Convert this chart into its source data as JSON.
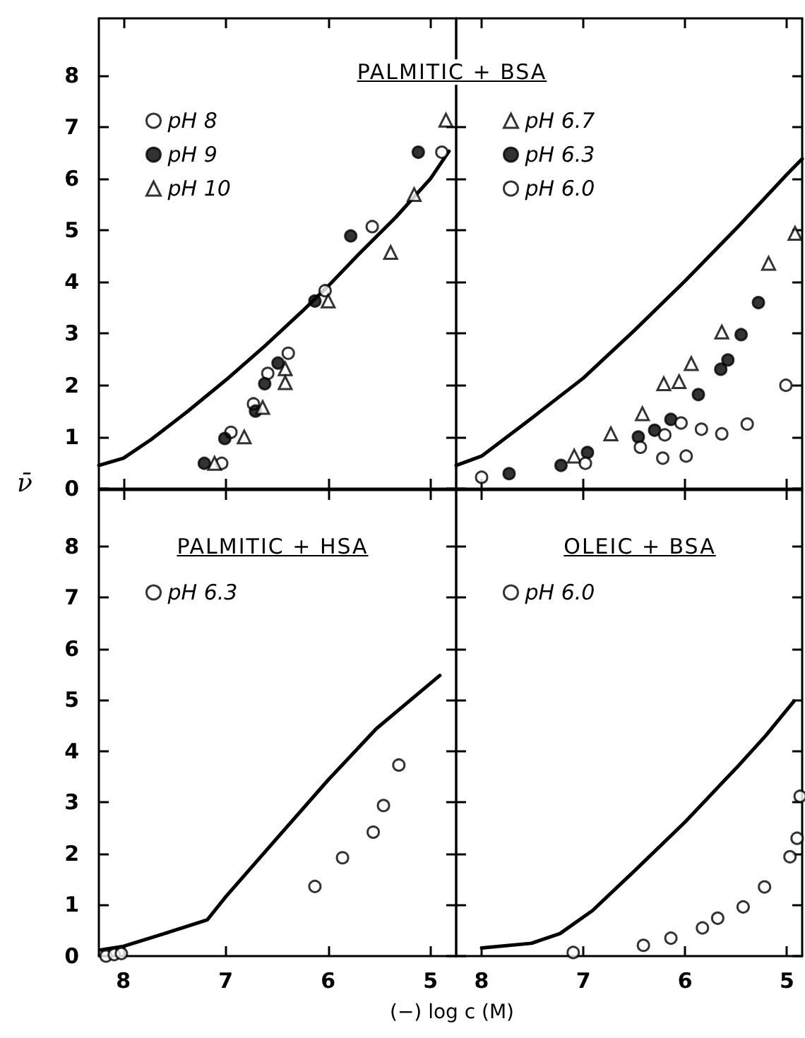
{
  "chart_data": [
    {
      "type": "scatter",
      "title": "PALMITIC + BSA",
      "ylabel": "ν̄",
      "xlim": [
        8.24,
        4.75
      ],
      "xticks": [
        8,
        7,
        6,
        5
      ],
      "ylim": [
        0,
        9.1
      ],
      "yticks": [
        0,
        1,
        2,
        3,
        4,
        5,
        6,
        7,
        8
      ],
      "tick_labels": "y",
      "legend": "top left",
      "series": [
        {
          "name": "pH 8",
          "color": "#ffffff",
          "marker": "circle",
          "x": [
            7.04,
            6.95,
            6.73,
            6.59,
            6.39,
            6.03,
            5.57,
            4.89
          ],
          "values": [
            0.49,
            1.09,
            1.64,
            2.23,
            2.62,
            3.83,
            5.07,
            6.51
          ]
        },
        {
          "name": "pH 9",
          "color": "#000000",
          "marker": "circle",
          "x": [
            7.21,
            7.01,
            6.71,
            6.62,
            6.49,
            6.13,
            5.78,
            5.12
          ],
          "values": [
            0.49,
            0.97,
            1.5,
            2.03,
            2.43,
            3.63,
            4.89,
            6.51
          ]
        },
        {
          "name": "pH 10",
          "color": "#ffffff",
          "marker": "triangle",
          "x": [
            7.11,
            6.82,
            6.64,
            6.42,
            6.42,
            6.0,
            5.39,
            5.16,
            4.85
          ],
          "values": [
            0.49,
            1.0,
            1.57,
            2.32,
            2.05,
            3.63,
            4.57,
            5.69,
            7.13
          ]
        },
        {
          "type": "line",
          "color": "#000000",
          "marker": "none",
          "x": [
            8.24,
            8.0,
            7.73,
            7.37,
            7.0,
            6.63,
            6.26,
            6.0,
            5.71,
            5.34,
            5.0,
            4.82
          ],
          "values": [
            0.45,
            0.59,
            0.95,
            1.5,
            2.1,
            2.74,
            3.42,
            3.92,
            4.52,
            5.25,
            6.0,
            6.53
          ]
        }
      ]
    },
    {
      "type": "scatter",
      "xlim": [
        8.25,
        4.85
      ],
      "xticks": [
        8,
        7,
        6,
        5
      ],
      "ylim": [
        0,
        9.1
      ],
      "yticks": [
        0,
        1,
        2,
        3,
        4,
        5,
        6,
        7,
        8
      ],
      "tick_labels": false,
      "legend": "top left",
      "series": [
        {
          "name": "pH 6.7",
          "color": "#ffffff",
          "marker": "triangle",
          "x": [
            7.09,
            6.73,
            6.42,
            6.21,
            6.06,
            5.94,
            5.64,
            5.18,
            4.92
          ],
          "values": [
            0.63,
            1.06,
            1.45,
            2.03,
            2.07,
            2.42,
            3.03,
            4.36,
            4.94
          ]
        },
        {
          "name": "pH 6.3",
          "color": "#000000",
          "marker": "circle",
          "x": [
            7.73,
            7.22,
            6.96,
            6.46,
            6.3,
            6.14,
            5.87,
            5.65,
            5.58,
            5.45,
            5.28
          ],
          "values": [
            0.29,
            0.45,
            0.7,
            1.0,
            1.13,
            1.34,
            1.82,
            2.31,
            2.49,
            2.98,
            3.6
          ]
        },
        {
          "name": "pH 6.0",
          "color": "#ffffff",
          "marker": "circle",
          "x": [
            8.0,
            6.98,
            6.44,
            6.22,
            6.2,
            6.04,
            5.99,
            5.84,
            5.64,
            5.39,
            5.01
          ],
          "values": [
            0.22,
            0.49,
            0.8,
            0.59,
            1.04,
            1.27,
            0.63,
            1.15,
            1.06,
            1.25,
            2.0
          ]
        },
        {
          "type": "line",
          "color": "#000000",
          "marker": "none",
          "x": [
            8.25,
            8.0,
            7.51,
            7.0,
            6.5,
            6.0,
            5.48,
            5.0,
            4.85
          ],
          "values": [
            0.45,
            0.63,
            1.36,
            2.14,
            3.06,
            4.02,
            5.07,
            6.08,
            6.38
          ]
        }
      ]
    },
    {
      "type": "scatter",
      "title": "PALMITIC + HSA",
      "xlabel": "(−) log c (M)",
      "xlim": [
        8.24,
        4.75
      ],
      "xticks": [
        8,
        7,
        6,
        5
      ],
      "ylim": [
        0,
        9.1
      ],
      "yticks": [
        0,
        1,
        2,
        3,
        4,
        5,
        6,
        7,
        8
      ],
      "legend": "top left",
      "series": [
        {
          "name": "pH 6.3",
          "color": "#ffffff",
          "marker": "circle",
          "x": [
            8.17,
            8.09,
            8.02,
            6.13,
            5.86,
            5.56,
            5.46,
            5.31
          ],
          "values": [
            0,
            0.03,
            0.05,
            1.36,
            1.92,
            2.42,
            2.94,
            3.73
          ]
        },
        {
          "type": "line",
          "color": "#000000",
          "marker": "none",
          "x": [
            8.22,
            8.0,
            7.6,
            7.18,
            7.0,
            6.54,
            6.0,
            5.53,
            4.91
          ],
          "values": [
            0.12,
            0.19,
            0.44,
            0.71,
            1.16,
            2.21,
            3.44,
            4.44,
            5.48
          ]
        }
      ]
    },
    {
      "type": "scatter",
      "title": "OLEIC + BSA",
      "xlim": [
        8.25,
        4.85
      ],
      "xticks": [
        8,
        7,
        6,
        5
      ],
      "ylim": [
        0,
        9.1
      ],
      "yticks": [
        0,
        1,
        2,
        3,
        4,
        5,
        6,
        7,
        8
      ],
      "tick_labels": "x",
      "legend": "top left",
      "series": [
        {
          "name": "pH 6.0",
          "color": "#ffffff",
          "marker": "circle",
          "x": [
            7.1,
            6.41,
            6.14,
            5.83,
            5.68,
            5.43,
            5.22,
            4.97,
            4.9,
            4.87
          ],
          "values": [
            0.07,
            0.21,
            0.35,
            0.55,
            0.74,
            0.96,
            1.35,
            1.94,
            2.3,
            3.12
          ]
        },
        {
          "type": "line",
          "color": "#000000",
          "marker": "none",
          "x": [
            8.0,
            7.51,
            7.23,
            6.91,
            6.5,
            6.0,
            5.48,
            5.21,
            4.93
          ],
          "values": [
            0.16,
            0.25,
            0.44,
            0.89,
            1.66,
            2.62,
            3.71,
            4.3,
            4.98
          ]
        }
      ]
    }
  ]
}
